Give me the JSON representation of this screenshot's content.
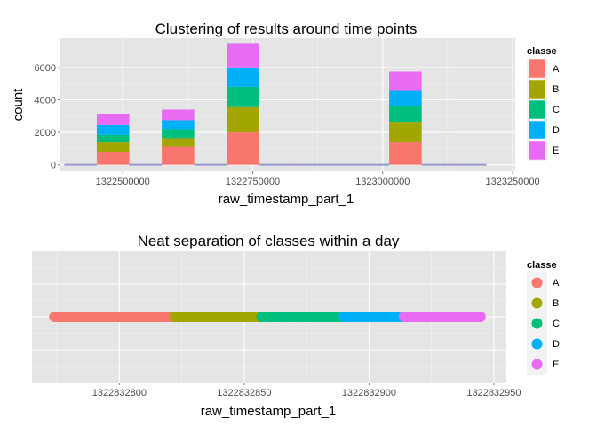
{
  "chart_data": [
    {
      "type": "bar",
      "title": "Clustering of results around time points",
      "xlabel": "raw_timestamp_part_1",
      "ylabel": "count",
      "xlim": [
        1322380000,
        1323255000
      ],
      "ylim": [
        -400,
        7800
      ],
      "x_ticks": [
        1322500000,
        1322750000,
        1323000000,
        1323250000
      ],
      "x_tick_labels": [
        "1322500000",
        "1322750000",
        "1323000000",
        "1323250000"
      ],
      "y_ticks": [
        0,
        2000,
        4000,
        6000
      ],
      "y_tick_labels": [
        "0",
        "2000",
        "4000",
        "6000"
      ],
      "grid": true,
      "legend_title": "classe",
      "legend_position": "right",
      "stacked": true,
      "bin_width": 62500,
      "bins": [
        {
          "x": 1322418750,
          "A": 0,
          "B": 0,
          "C": 0,
          "D": 0,
          "E": 0
        },
        {
          "x": 1322481250,
          "A": 800,
          "B": 600,
          "C": 450,
          "D": 600,
          "E": 650
        },
        {
          "x": 1322543750,
          "A": 0,
          "B": 0,
          "C": 0,
          "D": 0,
          "E": 0
        },
        {
          "x": 1322606250,
          "A": 1100,
          "B": 500,
          "C": 600,
          "D": 550,
          "E": 650
        },
        {
          "x": 1322668750,
          "A": 0,
          "B": 0,
          "C": 0,
          "D": 0,
          "E": 0
        },
        {
          "x": 1322731250,
          "A": 2000,
          "B": 1550,
          "C": 1250,
          "D": 1150,
          "E": 1500
        },
        {
          "x": 1322793750,
          "A": 0,
          "B": 0,
          "C": 0,
          "D": 0,
          "E": 0
        },
        {
          "x": 1322856250,
          "A": 0,
          "B": 0,
          "C": 0,
          "D": 0,
          "E": 0
        },
        {
          "x": 1322918750,
          "A": 0,
          "B": 0,
          "C": 0,
          "D": 0,
          "E": 0
        },
        {
          "x": 1322981250,
          "A": 0,
          "B": 0,
          "C": 0,
          "D": 0,
          "E": 0
        },
        {
          "x": 1323043750,
          "A": 1400,
          "B": 1200,
          "C": 1000,
          "D": 1000,
          "E": 1150
        },
        {
          "x": 1323106250,
          "A": 0,
          "B": 0,
          "C": 0,
          "D": 0,
          "E": 0
        },
        {
          "x": 1323168750,
          "A": 0,
          "B": 0,
          "C": 0,
          "D": 0,
          "E": 0
        }
      ]
    },
    {
      "type": "scatter",
      "title": "Neat separation of classes within a day",
      "xlabel": "raw_timestamp_part_1",
      "ylabel": "",
      "xlim": [
        1322832765,
        1322832955
      ],
      "x_ticks": [
        1322832800,
        1322832850,
        1322832900,
        1322832950
      ],
      "x_tick_labels": [
        "1322832800",
        "1322832850",
        "1322832900",
        "1322832950"
      ],
      "grid": true,
      "legend_title": "classe",
      "legend_position": "right",
      "segments": [
        {
          "class": "A",
          "x_start": 1322832774,
          "x_end": 1322832822
        },
        {
          "class": "B",
          "x_start": 1322832822,
          "x_end": 1322832857
        },
        {
          "class": "C",
          "x_start": 1322832857,
          "x_end": 1322832890
        },
        {
          "class": "D",
          "x_start": 1322832890,
          "x_end": 1322832914
        },
        {
          "class": "E",
          "x_start": 1322832914,
          "x_end": 1322832945
        }
      ]
    }
  ],
  "classes": [
    "A",
    "B",
    "C",
    "D",
    "E"
  ],
  "colors": {
    "A": "#F8766D",
    "B": "#A3A500",
    "C": "#00BF7D",
    "D": "#00B0F6",
    "E": "#E76BF3"
  },
  "baseline_color": "#9999CC",
  "panel_bg": "#E5E5E5",
  "grid_color": "#ffffff"
}
